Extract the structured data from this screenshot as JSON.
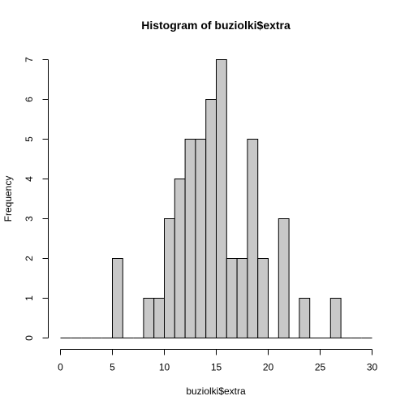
{
  "chart_data": {
    "type": "bar",
    "title": "Histogram of buziolki$extra",
    "xlabel": "buziolki$extra",
    "ylabel": "Frequency",
    "bin_width": 1,
    "bin_edges_start": 0,
    "values": [
      0,
      0,
      0,
      0,
      0,
      2,
      0,
      0,
      1,
      1,
      3,
      4,
      5,
      5,
      6,
      7,
      2,
      2,
      5,
      2,
      0,
      3,
      0,
      1,
      0,
      0,
      1,
      0,
      0,
      0
    ],
    "xlim": [
      0,
      30
    ],
    "ylim": [
      0,
      7
    ],
    "xticks": [
      0,
      5,
      10,
      15,
      20,
      25,
      30
    ],
    "yticks": [
      0,
      1,
      2,
      3,
      4,
      5,
      6,
      7
    ],
    "grid": false,
    "legend": "none",
    "bar_fill": "#c8c8c8",
    "bar_stroke": "#000000"
  }
}
